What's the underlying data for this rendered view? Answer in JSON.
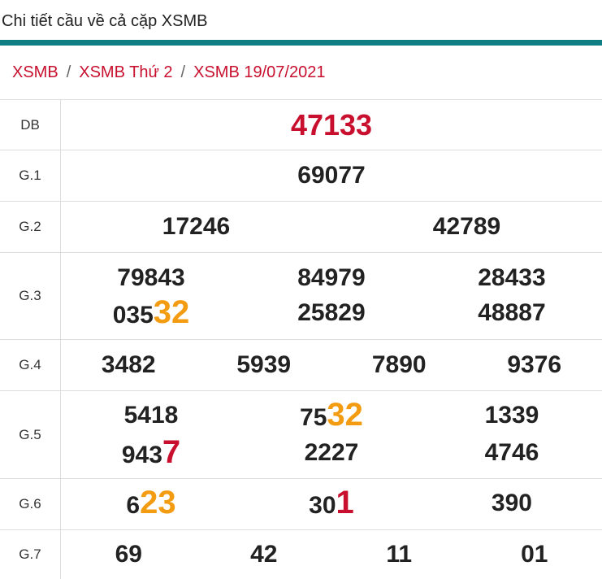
{
  "page_title": "Chi tiết cầu về cả cặp XSMB",
  "breadcrumb": [
    "XSMB",
    "XSMB Thứ 2",
    "XSMB 19/07/2021"
  ],
  "breadcrumb_sep": "/",
  "rows": {
    "db": {
      "label": "DB",
      "values": [
        "47133"
      ]
    },
    "g1": {
      "label": "G.1",
      "values": [
        "69077"
      ]
    },
    "g2": {
      "label": "G.2",
      "values": [
        "17246",
        "42789"
      ]
    },
    "g3": {
      "label": "G.3",
      "values": [
        {
          "pre": "79843",
          "hl": ""
        },
        {
          "pre": "84979",
          "hl": ""
        },
        {
          "pre": "28433",
          "hl": ""
        },
        {
          "pre": "035",
          "hl": "32"
        },
        {
          "pre": "25829",
          "hl": ""
        },
        {
          "pre": "48887",
          "hl": ""
        }
      ]
    },
    "g4": {
      "label": "G.4",
      "values": [
        "3482",
        "5939",
        "7890",
        "9376"
      ]
    },
    "g5": {
      "label": "G.5",
      "values": [
        {
          "pre": "5418",
          "hl": ""
        },
        {
          "pre": "75",
          "hl": "32"
        },
        {
          "pre": "1339",
          "hl": ""
        },
        {
          "pre": "943",
          "hl": "7"
        },
        {
          "pre": "2227",
          "hl": ""
        },
        {
          "pre": "4746",
          "hl": ""
        }
      ]
    },
    "g6": {
      "label": "G.6",
      "values": [
        {
          "pre": "6",
          "hl": "23"
        },
        {
          "pre": "30",
          "hl": "1"
        },
        {
          "pre": "390",
          "hl": ""
        }
      ]
    },
    "g7": {
      "label": "G.7",
      "values": [
        "69",
        "42",
        "11",
        "01"
      ]
    }
  },
  "colors": {
    "accent_bar": "#0f7f83",
    "red": "#c8102e",
    "orange": "#f39c12"
  }
}
